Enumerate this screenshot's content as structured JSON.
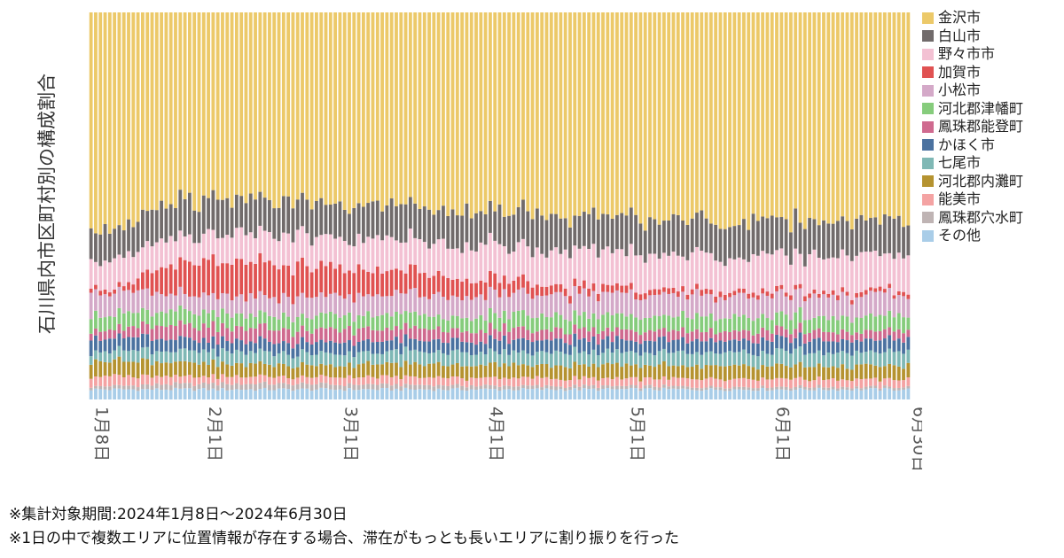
{
  "notes": [
    "※集計対象期間:2024年1月8日～2024年6月30日",
    "※1日の中で複数エリアに位置情報が存在する場合、滞在がもっとも長いエリアに割り振りを行った"
  ],
  "chart_data": {
    "type": "bar",
    "stacked": true,
    "normalized": true,
    "ylabel": "石川県内市区町村別の構成割合",
    "xlabel": "",
    "x_tick_labels": [
      "1月8日",
      "2月1日",
      "3月1日",
      "4月1日",
      "5月1日",
      "6月1日",
      "6月30日"
    ],
    "x_tick_dates": [
      "2024-01-08",
      "2024-02-01",
      "2024-03-01",
      "2024-04-01",
      "2024-05-01",
      "2024-06-01",
      "2024-06-30"
    ],
    "x_start": "2024-01-08",
    "x_end": "2024-06-30",
    "ylim": [
      0,
      100
    ],
    "legend_position": "right",
    "grid": false,
    "approximate_weekly_percent": {
      "dates": [
        "2024-01-08",
        "2024-01-15",
        "2024-01-22",
        "2024-01-29",
        "2024-02-05",
        "2024-02-12",
        "2024-02-19",
        "2024-02-26",
        "2024-03-04",
        "2024-03-11",
        "2024-03-18",
        "2024-03-25",
        "2024-04-01",
        "2024-04-08",
        "2024-04-15",
        "2024-04-22",
        "2024-04-29",
        "2024-05-06",
        "2024-05-13",
        "2024-05-20",
        "2024-05-27",
        "2024-06-03",
        "2024-06-10",
        "2024-06-17",
        "2024-06-24",
        "2024-06-30"
      ],
      "series": [
        {
          "name": "その他",
          "values": [
            2.6,
            2.6,
            2.6,
            2.6,
            2.6,
            2.6,
            2.6,
            2.6,
            2.6,
            2.6,
            2.6,
            2.6,
            2.6,
            2.6,
            2.6,
            2.6,
            2.6,
            2.6,
            2.6,
            2.6,
            2.6,
            2.6,
            2.6,
            2.6,
            2.6,
            2.6
          ]
        },
        {
          "name": "鳳珠郡穴水町",
          "values": [
            0.8,
            0.9,
            1.2,
            1.4,
            1.5,
            1.5,
            1.4,
            1.3,
            1.2,
            1.2,
            1.1,
            1.0,
            0.9,
            0.9,
            0.8,
            0.8,
            0.8,
            0.8,
            0.7,
            0.7,
            0.7,
            0.7,
            0.7,
            0.6,
            0.6,
            0.6
          ]
        },
        {
          "name": "能美市",
          "values": [
            2.5,
            2.5,
            2.3,
            2.0,
            1.9,
            1.9,
            1.8,
            1.9,
            1.9,
            1.9,
            2.0,
            2.0,
            2.0,
            2.1,
            2.0,
            2.0,
            2.0,
            2.0,
            2.0,
            2.0,
            2.0,
            2.0,
            2.0,
            2.0,
            2.0,
            2.0
          ]
        },
        {
          "name": "河北郡内灘町",
          "values": [
            4.0,
            4.1,
            3.8,
            3.4,
            3.2,
            3.2,
            3.0,
            3.1,
            3.2,
            3.3,
            3.4,
            3.4,
            3.4,
            3.4,
            3.4,
            3.4,
            3.4,
            3.4,
            3.4,
            3.4,
            3.4,
            3.4,
            3.4,
            3.4,
            3.4,
            3.4
          ]
        },
        {
          "name": "七尾市",
          "values": [
            2.6,
            2.6,
            2.8,
            2.9,
            3.0,
            3.0,
            3.0,
            3.0,
            3.0,
            3.1,
            3.2,
            3.2,
            3.2,
            3.3,
            3.4,
            3.4,
            3.4,
            3.4,
            3.5,
            3.5,
            3.5,
            3.5,
            3.5,
            3.5,
            3.6,
            3.6
          ]
        },
        {
          "name": "かほく市",
          "values": [
            3.5,
            3.5,
            3.0,
            2.9,
            2.8,
            2.8,
            2.8,
            2.9,
            2.9,
            2.9,
            3.0,
            3.0,
            3.1,
            3.1,
            3.1,
            3.1,
            3.2,
            3.2,
            3.2,
            3.2,
            3.2,
            3.2,
            3.2,
            3.2,
            3.2,
            3.2
          ]
        },
        {
          "name": "鳳珠郡能登町",
          "values": [
            2.0,
            2.3,
            3.2,
            3.6,
            3.6,
            3.5,
            3.4,
            3.3,
            3.2,
            3.1,
            3.0,
            2.9,
            2.8,
            2.7,
            2.6,
            2.6,
            2.5,
            2.4,
            2.4,
            2.4,
            2.3,
            2.3,
            2.3,
            2.2,
            2.2,
            2.2
          ]
        },
        {
          "name": "河北郡津幡町",
          "values": [
            4.0,
            4.0,
            3.6,
            3.4,
            3.4,
            3.4,
            3.4,
            3.5,
            3.5,
            3.6,
            3.6,
            3.6,
            3.6,
            3.7,
            3.7,
            3.7,
            3.7,
            3.7,
            3.7,
            3.7,
            3.7,
            3.7,
            3.7,
            3.7,
            3.7,
            3.7
          ]
        },
        {
          "name": "小松市",
          "values": [
            6.0,
            5.8,
            4.7,
            4.4,
            4.5,
            4.6,
            4.7,
            4.9,
            5.0,
            5.1,
            5.3,
            5.3,
            5.4,
            5.4,
            5.4,
            5.4,
            5.5,
            5.5,
            5.5,
            5.5,
            5.5,
            5.5,
            5.5,
            5.5,
            5.5,
            5.5
          ]
        },
        {
          "name": "加賀市",
          "values": [
            1.0,
            1.2,
            6.0,
            8.5,
            8.8,
            8.6,
            8.2,
            7.5,
            6.8,
            6.2,
            5.5,
            4.8,
            4.0,
            3.2,
            2.5,
            2.0,
            1.7,
            1.5,
            1.4,
            1.3,
            1.2,
            1.2,
            1.1,
            1.1,
            1.0,
            1.0
          ]
        },
        {
          "name": "野々市市",
          "values": [
            7.0,
            7.0,
            6.6,
            6.8,
            7.0,
            7.2,
            7.4,
            7.6,
            7.8,
            8.0,
            8.2,
            8.4,
            8.6,
            8.7,
            8.8,
            8.9,
            8.9,
            8.9,
            8.9,
            8.9,
            8.9,
            8.9,
            9.0,
            9.0,
            9.0,
            9.0
          ]
        },
        {
          "name": "白山市",
          "values": [
            8.0,
            8.3,
            9.4,
            9.6,
            9.0,
            8.7,
            8.6,
            8.5,
            8.6,
            8.6,
            8.7,
            8.8,
            8.9,
            9.0,
            9.1,
            9.1,
            9.1,
            9.1,
            9.1,
            9.1,
            9.1,
            9.1,
            9.1,
            9.1,
            9.1,
            9.1
          ]
        },
        {
          "name": "金沢市",
          "values": [
            56.0,
            55.2,
            50.8,
            48.5,
            48.7,
            49.0,
            49.7,
            49.9,
            50.3,
            50.4,
            50.5,
            51.0,
            51.5,
            51.9,
            52.6,
            53.0,
            53.2,
            53.5,
            53.6,
            53.7,
            53.9,
            53.9,
            53.9,
            54.1,
            54.0,
            54.1
          ]
        }
      ]
    },
    "series_colors": {
      "金沢市": "#ecc969",
      "白山市": "#716b6b",
      "野々市市": "#f3c1d3",
      "加賀市": "#e05252",
      "小松市": "#d4a9c8",
      "河北郡津幡町": "#86cc7c",
      "鳳珠郡能登町": "#cf6a8f",
      "かほく市": "#4b72a0",
      "七尾市": "#7fb8b5",
      "河北郡内灘町": "#b59330",
      "能美市": "#f4a3a3",
      "鳳珠郡穴水町": "#bfb4b4",
      "その他": "#a9cde8"
    }
  },
  "legend": [
    {
      "label": "金沢市",
      "color": "#ecc969"
    },
    {
      "label": "白山市",
      "color": "#716b6b"
    },
    {
      "label": "野々市市",
      "color": "#f3c1d3"
    },
    {
      "label": "加賀市",
      "color": "#e05252"
    },
    {
      "label": "小松市",
      "color": "#d4a9c8"
    },
    {
      "label": "河北郡津幡町",
      "color": "#86cc7c"
    },
    {
      "label": "鳳珠郡能登町",
      "color": "#cf6a8f"
    },
    {
      "label": "かほく市",
      "color": "#4b72a0"
    },
    {
      "label": "七尾市",
      "color": "#7fb8b5"
    },
    {
      "label": "河北郡内灘町",
      "color": "#b59330"
    },
    {
      "label": "能美市",
      "color": "#f4a3a3"
    },
    {
      "label": "鳳珠郡穴水町",
      "color": "#bfb4b4"
    },
    {
      "label": "その他",
      "color": "#a9cde8"
    }
  ]
}
